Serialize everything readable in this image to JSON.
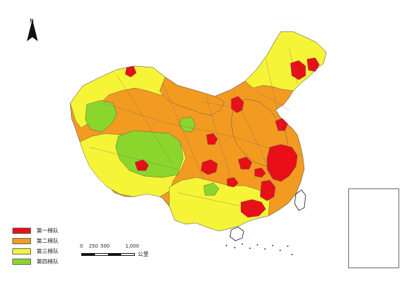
{
  "north_arrow": {
    "label": "N",
    "icon": "north-arrow-icon"
  },
  "legend": {
    "items": [
      {
        "label": "第一梯队",
        "color": "#e80f16"
      },
      {
        "label": "第二梯队",
        "color": "#f39a20"
      },
      {
        "label": "第三梯队",
        "color": "#f6f436"
      },
      {
        "label": "第四梯队",
        "color": "#8bd62c"
      }
    ]
  },
  "scale": {
    "ticks": [
      "0",
      "250",
      "500",
      "1,000"
    ],
    "unit": "公里"
  },
  "colors": {
    "first_tier": "#e80f16",
    "second_tier": "#f39a20",
    "third_tier": "#f6f436",
    "fourth_tier": "#8bd62c",
    "border": "#5b5b5b"
  }
}
